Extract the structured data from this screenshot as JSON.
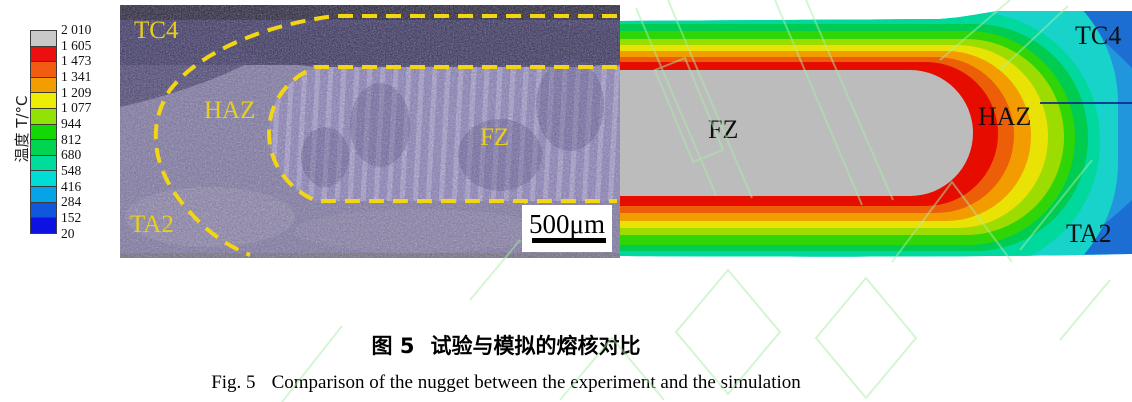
{
  "palette": {
    "gray": "#bcbcbc",
    "red": "#e60c00",
    "orange_red": "#ec5f08",
    "orange": "#f29c00",
    "yellow": "#e9e305",
    "chartreuse": "#9ddc00",
    "green": "#2fd506",
    "green2": "#00cc52",
    "spring": "#00d89e",
    "cyan": "#17d3c9",
    "sky": "#2196dc",
    "blue": "#1d6ed2",
    "interface_line": "#0a2d88",
    "dash_yellow": "#f2d513",
    "label_yellow": "#e8cf1a",
    "watermark": "#a9eda9"
  },
  "legend": {
    "title": "温度 T/°C",
    "values": [
      "2 010",
      "1 605",
      "1 473",
      "1 341",
      "1 209",
      "1 077",
      "944",
      "812",
      "680",
      "548",
      "416",
      "284",
      "152",
      "20"
    ],
    "colors": [
      "#c9c9c9",
      "#ec0f0f",
      "#f15c10",
      "#f29e00",
      "#eeee04",
      "#90e304",
      "#13d804",
      "#00d450",
      "#00dc9c",
      "#00ddd6",
      "#06a3e8",
      "#0f58dd",
      "#0d12e2"
    ]
  },
  "micrograph": {
    "labels": {
      "tc4": "TC4",
      "haz": "HAZ",
      "fz": "FZ",
      "ta2": "TA2"
    },
    "scale_bar": "500μm"
  },
  "simulation": {
    "labels": {
      "fz": "FZ",
      "haz": "HAZ",
      "tc4": "TC4",
      "ta2": "TA2"
    }
  },
  "caption": {
    "zh_prefix": "图 5",
    "zh_text": "试验与模拟的熔核对比",
    "en_prefix": "Fig. 5",
    "en_text": "Comparison of the nugget between the experiment and the simulation"
  }
}
